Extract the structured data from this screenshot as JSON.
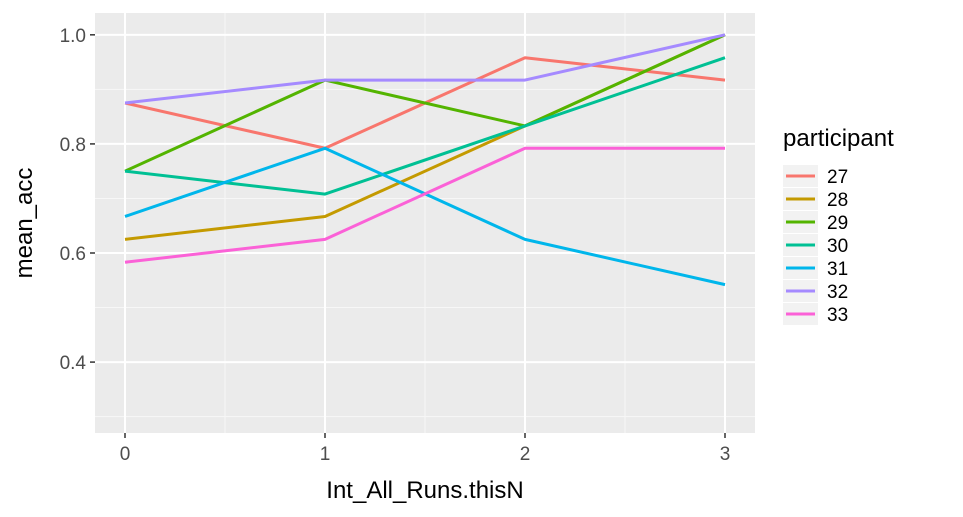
{
  "chart_data": {
    "type": "line",
    "xlabel": "Int_All_Runs.thisN",
    "ylabel": "mean_acc",
    "x": [
      0,
      1,
      2,
      3
    ],
    "x_ticks": [
      "0",
      "1",
      "2",
      "3"
    ],
    "y_ticks": [
      "0.4",
      "0.6",
      "0.8",
      "1.0"
    ],
    "xlim": [
      -0.15,
      3.15
    ],
    "ylim": [
      0.27,
      1.04
    ],
    "grid": true,
    "legend": {
      "title": "participant",
      "placement": "right"
    },
    "series": [
      {
        "name": "27",
        "color": "#F8766D",
        "values": [
          0.875,
          0.792,
          0.958,
          0.917
        ]
      },
      {
        "name": "28",
        "color": "#C49A00",
        "values": [
          0.625,
          0.667,
          0.833,
          1.0
        ]
      },
      {
        "name": "29",
        "color": "#53B400",
        "values": [
          0.75,
          0.917,
          0.833,
          1.0
        ]
      },
      {
        "name": "30",
        "color": "#00C094",
        "values": [
          0.75,
          0.708,
          0.833,
          0.958
        ]
      },
      {
        "name": "31",
        "color": "#00B6EB",
        "values": [
          0.667,
          0.792,
          0.625,
          0.542
        ]
      },
      {
        "name": "32",
        "color": "#A58AFF",
        "values": [
          0.875,
          0.917,
          0.917,
          1.0
        ]
      },
      {
        "name": "33",
        "color": "#FB61D7",
        "values": [
          0.583,
          0.625,
          0.792,
          0.792
        ]
      }
    ]
  }
}
